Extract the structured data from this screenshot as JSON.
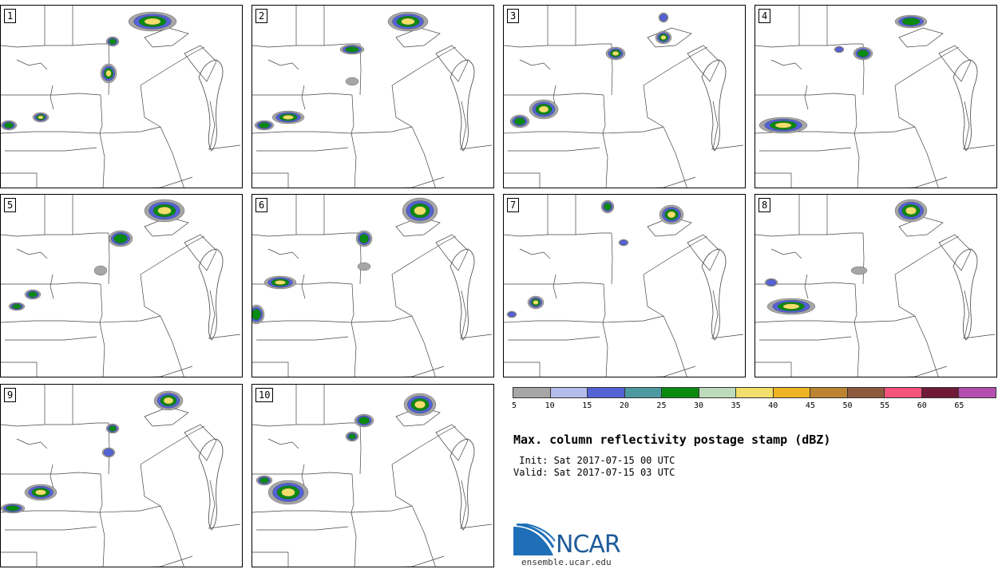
{
  "panels": [
    {
      "label": "1"
    },
    {
      "label": "2"
    },
    {
      "label": "3"
    },
    {
      "label": "4"
    },
    {
      "label": "5"
    },
    {
      "label": "6"
    },
    {
      "label": "7"
    },
    {
      "label": "8"
    },
    {
      "label": "9"
    },
    {
      "label": "10"
    }
  ],
  "colorbar": {
    "colors": [
      "#a6a6a6",
      "#b4bdec",
      "#5462d6",
      "#4c9aa0",
      "#0b8a10",
      "#bcdcbc",
      "#f2de6a",
      "#f0b323",
      "#bc8432",
      "#8e5a3e",
      "#f5527c",
      "#701a3a",
      "#b44fb0"
    ],
    "tick_labels": [
      "5",
      "10",
      "15",
      "20",
      "25",
      "30",
      "35",
      "40",
      "45",
      "50",
      "55",
      "60",
      "65"
    ]
  },
  "title": "Max. column reflectivity postage stamp (dBZ)",
  "init": " Init: Sat 2017-07-15 00 UTC",
  "valid": "Valid: Sat 2017-07-15 03 UTC",
  "logo": {
    "text": "NCAR",
    "url": "ensemble.ucar.edu",
    "brand_color": "#1f5c99"
  }
}
